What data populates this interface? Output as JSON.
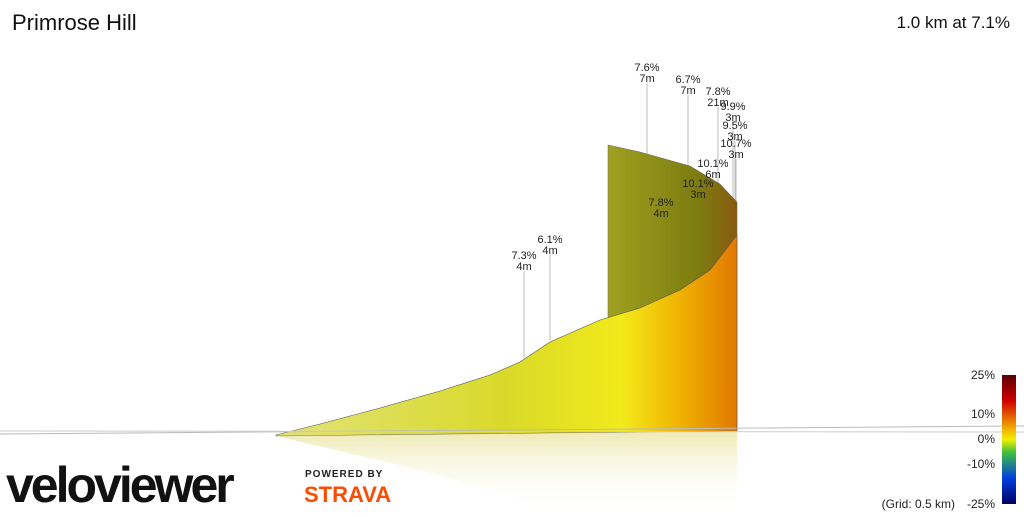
{
  "header": {
    "title": "Primrose Hill",
    "summary": "1.0 km at 7.1%"
  },
  "annotations": [
    {
      "grade": "7.3%",
      "length": "4m"
    },
    {
      "grade": "6.1%",
      "length": "4m"
    },
    {
      "grade": "7.8%",
      "length": "4m"
    },
    {
      "grade": "7.6%",
      "length": "7m"
    },
    {
      "grade": "6.7%",
      "length": "7m"
    },
    {
      "grade": "10.1%",
      "length": "3m"
    },
    {
      "grade": "10.1%",
      "length": "6m"
    },
    {
      "grade": "7.8%",
      "length": "21m"
    },
    {
      "grade": "9.9%",
      "length": "3m"
    },
    {
      "grade": "9.5%",
      "length": "3m"
    },
    {
      "grade": "10.7%",
      "length": "3m"
    }
  ],
  "color_scale": {
    "labels": [
      "25%",
      "10%",
      "0%",
      "-10%",
      "-25%"
    ],
    "grid_note": "(Grid: 0.5 km)"
  },
  "branding": {
    "logo": "veloviewer",
    "powered_by": "POWERED BY",
    "partner": "STRAVA"
  }
}
